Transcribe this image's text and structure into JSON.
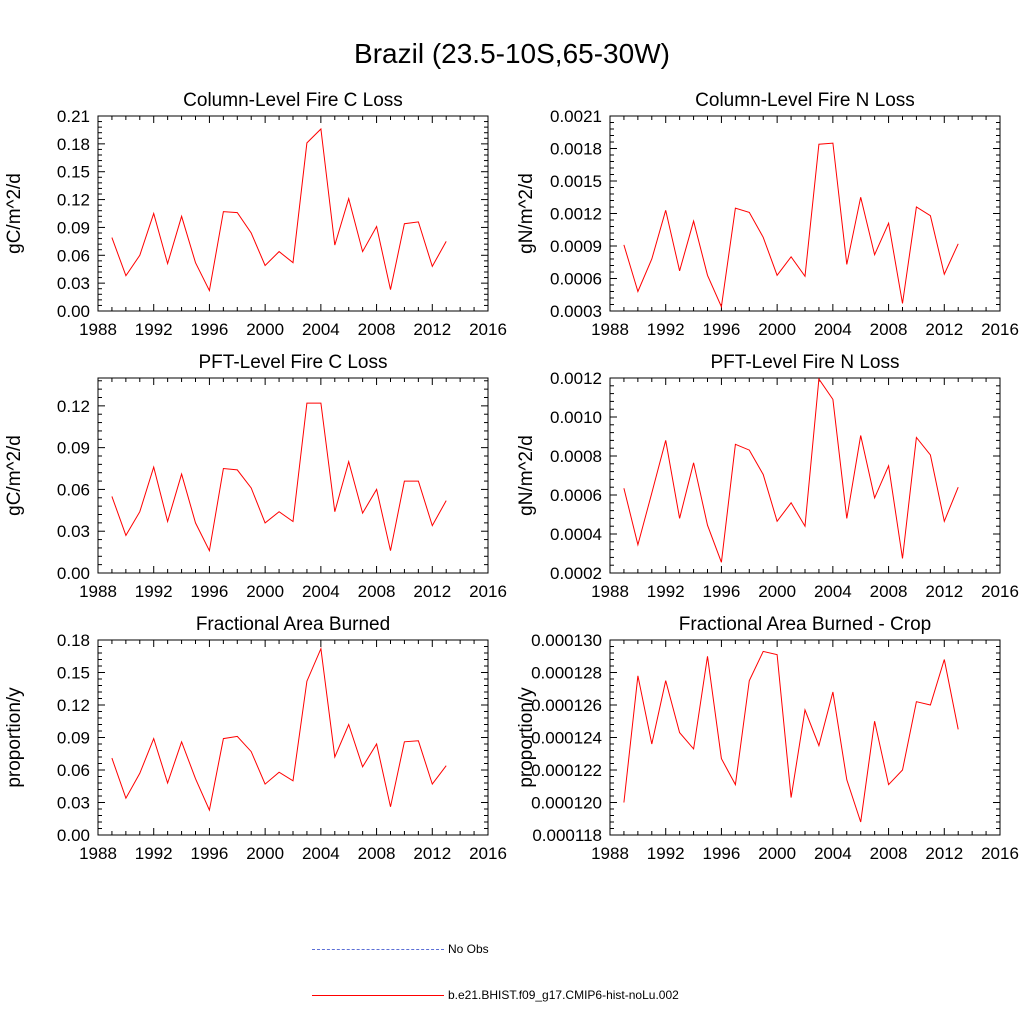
{
  "figure": {
    "title": "Brazil (23.5-10S,65-30W)"
  },
  "colors": {
    "model_line": "#ff0000",
    "obs_line": "#5b6fd6",
    "axis": "#000000"
  },
  "chart_data": [
    {
      "type": "line",
      "title": "Column-Level Fire C Loss",
      "ylabel": "gC/m^2/d",
      "xlabel": "",
      "xlim": [
        1988,
        2016
      ],
      "ylim": [
        0,
        0.21
      ],
      "x_ticks": [
        1988,
        1992,
        1996,
        2000,
        2004,
        2008,
        2012,
        2016
      ],
      "x_tick_labels": [
        "1988",
        "1992",
        "1996",
        "2000",
        "2004",
        "2008",
        "2012",
        "2016"
      ],
      "y_ticks": [
        0,
        0.03,
        0.06,
        0.09,
        0.12,
        0.15,
        0.18,
        0.21
      ],
      "y_tick_labels": [
        "0.00",
        "0.03",
        "0.06",
        "0.09",
        "0.12",
        "0.15",
        "0.18",
        "0.21"
      ],
      "x": [
        1989,
        1990,
        1991,
        1992,
        1993,
        1994,
        1995,
        1996,
        1997,
        1998,
        1999,
        2000,
        2001,
        2002,
        2003,
        2004,
        2005,
        2006,
        2007,
        2008,
        2009,
        2010,
        2011,
        2012,
        2013
      ],
      "series": [
        {
          "values": [
            0.079,
            0.038,
            0.06,
            0.105,
            0.051,
            0.102,
            0.052,
            0.022,
            0.107,
            0.106,
            0.084,
            0.049,
            0.064,
            0.052,
            0.181,
            0.196,
            0.071,
            0.121,
            0.064,
            0.091,
            0.023,
            0.094,
            0.096,
            0.048,
            0.075
          ]
        }
      ]
    },
    {
      "type": "line",
      "title": "Column-Level Fire N Loss",
      "ylabel": "gN/m^2/d",
      "xlabel": "",
      "xlim": [
        1988,
        2016
      ],
      "ylim": [
        0.0003,
        0.0021
      ],
      "x_ticks": [
        1988,
        1992,
        1996,
        2000,
        2004,
        2008,
        2012,
        2016
      ],
      "x_tick_labels": [
        "1988",
        "1992",
        "1996",
        "2000",
        "2004",
        "2008",
        "2012",
        "2016"
      ],
      "y_ticks": [
        0.0003,
        0.0006,
        0.0009,
        0.0012,
        0.0015,
        0.0018,
        0.0021
      ],
      "y_tick_labels": [
        "0.0003",
        "0.0006",
        "0.0009",
        "0.0012",
        "0.0015",
        "0.0018",
        "0.0021"
      ],
      "x": [
        1989,
        1990,
        1991,
        1992,
        1993,
        1994,
        1995,
        1996,
        1997,
        1998,
        1999,
        2000,
        2001,
        2002,
        2003,
        2004,
        2005,
        2006,
        2007,
        2008,
        2009,
        2010,
        2011,
        2012,
        2013
      ],
      "series": [
        {
          "values": [
            0.00091,
            0.00048,
            0.00078,
            0.00123,
            0.00067,
            0.00113,
            0.00063,
            0.00034,
            0.00125,
            0.00121,
            0.00098,
            0.00063,
            0.0008,
            0.00062,
            0.00184,
            0.00185,
            0.00073,
            0.00135,
            0.00082,
            0.00111,
            0.00037,
            0.00126,
            0.00118,
            0.00064,
            0.00092
          ]
        }
      ]
    },
    {
      "type": "line",
      "title": "PFT-Level Fire C Loss",
      "ylabel": "gC/m^2/d",
      "xlabel": "",
      "xlim": [
        1988,
        2016
      ],
      "ylim": [
        0,
        0.14
      ],
      "x_ticks": [
        1988,
        1992,
        1996,
        2000,
        2004,
        2008,
        2012,
        2016
      ],
      "x_tick_labels": [
        "1988",
        "1992",
        "1996",
        "2000",
        "2004",
        "2008",
        "2012",
        "2016"
      ],
      "y_ticks": [
        0,
        0.03,
        0.06,
        0.09,
        0.12
      ],
      "y_tick_labels": [
        "0.00",
        "0.03",
        "0.06",
        "0.09",
        "0.12"
      ],
      "x": [
        1989,
        1990,
        1991,
        1992,
        1993,
        1994,
        1995,
        1996,
        1997,
        1998,
        1999,
        2000,
        2001,
        2002,
        2003,
        2004,
        2005,
        2006,
        2007,
        2008,
        2009,
        2010,
        2011,
        2012,
        2013
      ],
      "series": [
        {
          "values": [
            0.055,
            0.027,
            0.044,
            0.076,
            0.037,
            0.071,
            0.036,
            0.016,
            0.075,
            0.074,
            0.061,
            0.036,
            0.044,
            0.037,
            0.122,
            0.122,
            0.044,
            0.08,
            0.043,
            0.06,
            0.016,
            0.066,
            0.066,
            0.034,
            0.052
          ]
        }
      ]
    },
    {
      "type": "line",
      "title": "PFT-Level Fire N Loss",
      "ylabel": "gN/m^2/d",
      "xlabel": "",
      "xlim": [
        1988,
        2016
      ],
      "ylim": [
        0.0002,
        0.0012
      ],
      "x_ticks": [
        1988,
        1992,
        1996,
        2000,
        2004,
        2008,
        2012,
        2016
      ],
      "x_tick_labels": [
        "1988",
        "1992",
        "1996",
        "2000",
        "2004",
        "2008",
        "2012",
        "2016"
      ],
      "y_ticks": [
        0.0002,
        0.0004,
        0.0006,
        0.0008,
        0.001,
        0.0012
      ],
      "y_tick_labels": [
        "0.0002",
        "0.0004",
        "0.0006",
        "0.0008",
        "0.0010",
        "0.0012"
      ],
      "x": [
        1989,
        1990,
        1991,
        1992,
        1993,
        1994,
        1995,
        1996,
        1997,
        1998,
        1999,
        2000,
        2001,
        2002,
        2003,
        2004,
        2005,
        2006,
        2007,
        2008,
        2009,
        2010,
        2011,
        2012,
        2013
      ],
      "series": [
        {
          "values": [
            0.000635,
            0.000345,
            0.00061,
            0.00088,
            0.00048,
            0.000765,
            0.000445,
            0.000255,
            0.00086,
            0.00083,
            0.000705,
            0.000465,
            0.00056,
            0.00044,
            0.001195,
            0.00109,
            0.00048,
            0.000905,
            0.000585,
            0.00075,
            0.000275,
            0.000895,
            0.000805,
            0.000465,
            0.00064
          ]
        }
      ]
    },
    {
      "type": "line",
      "title": "Fractional Area Burned",
      "ylabel": "proportion/y",
      "xlabel": "",
      "xlim": [
        1988,
        2016
      ],
      "ylim": [
        0,
        0.18
      ],
      "x_ticks": [
        1988,
        1992,
        1996,
        2000,
        2004,
        2008,
        2012,
        2016
      ],
      "x_tick_labels": [
        "1988",
        "1992",
        "1996",
        "2000",
        "2004",
        "2008",
        "2012",
        "2016"
      ],
      "y_ticks": [
        0,
        0.03,
        0.06,
        0.09,
        0.12,
        0.15,
        0.18
      ],
      "y_tick_labels": [
        "0.00",
        "0.03",
        "0.06",
        "0.09",
        "0.12",
        "0.15",
        "0.18"
      ],
      "x": [
        1989,
        1990,
        1991,
        1992,
        1993,
        1994,
        1995,
        1996,
        1997,
        1998,
        1999,
        2000,
        2001,
        2002,
        2003,
        2004,
        2005,
        2006,
        2007,
        2008,
        2009,
        2010,
        2011,
        2012,
        2013
      ],
      "series": [
        {
          "values": [
            0.071,
            0.034,
            0.057,
            0.089,
            0.048,
            0.086,
            0.052,
            0.023,
            0.089,
            0.091,
            0.077,
            0.047,
            0.058,
            0.05,
            0.142,
            0.172,
            0.072,
            0.102,
            0.063,
            0.084,
            0.026,
            0.086,
            0.087,
            0.047,
            0.064
          ]
        }
      ]
    },
    {
      "type": "line",
      "title": "Fractional Area Burned - Crop",
      "ylabel": "proportion/y",
      "xlabel": "",
      "xlim": [
        1988,
        2016
      ],
      "ylim": [
        0.000118,
        0.00013
      ],
      "x_ticks": [
        1988,
        1992,
        1996,
        2000,
        2004,
        2008,
        2012,
        2016
      ],
      "x_tick_labels": [
        "1988",
        "1992",
        "1996",
        "2000",
        "2004",
        "2008",
        "2012",
        "2016"
      ],
      "y_ticks": [
        0.000118,
        0.00012,
        0.000122,
        0.000124,
        0.000126,
        0.000128,
        0.00013
      ],
      "y_tick_labels": [
        "0.000118",
        "0.000120",
        "0.000122",
        "0.000124",
        "0.000126",
        "0.000128",
        "0.000130"
      ],
      "x": [
        1989,
        1990,
        1991,
        1992,
        1993,
        1994,
        1995,
        1996,
        1997,
        1998,
        1999,
        2000,
        2001,
        2002,
        2003,
        2004,
        2005,
        2006,
        2007,
        2008,
        2009,
        2010,
        2011,
        2012,
        2013
      ],
      "series": [
        {
          "values": [
            0.00012,
            0.0001278,
            0.0001236,
            0.0001275,
            0.0001243,
            0.0001233,
            0.000129,
            0.0001227,
            0.0001211,
            0.0001275,
            0.0001293,
            0.0001291,
            0.0001203,
            0.0001257,
            0.0001235,
            0.0001268,
            0.0001214,
            0.0001188,
            0.000125,
            0.0001211,
            0.000122,
            0.0001262,
            0.000126,
            0.0001288,
            0.0001245
          ]
        }
      ]
    }
  ],
  "legend": {
    "placement": "bottom-center",
    "entries": [
      {
        "label": "No Obs",
        "style": "dashed"
      },
      {
        "label": "b.e21.BHIST.f09_g17.CMIP6-hist-noLu.002",
        "style": "solid"
      }
    ]
  }
}
